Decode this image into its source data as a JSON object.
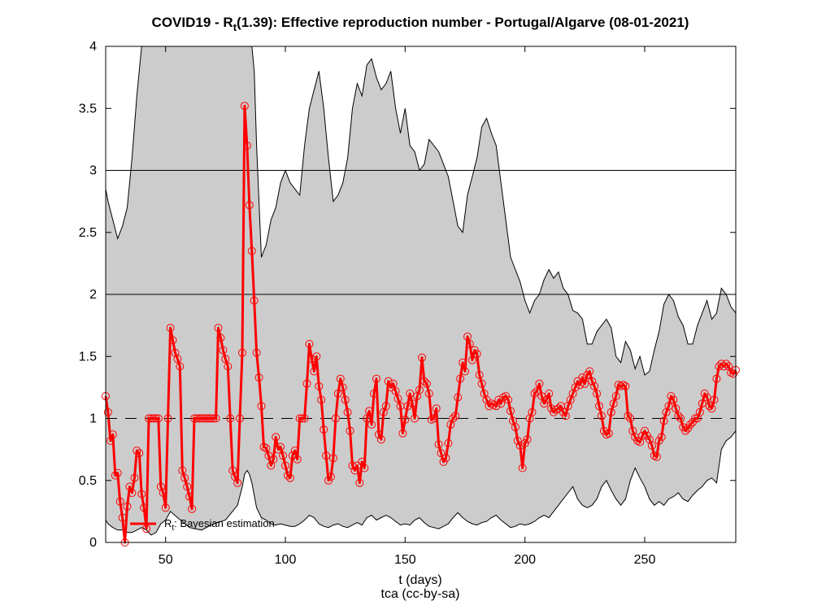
{
  "chart_data": {
    "type": "line",
    "title": {
      "prefix": "COVID19 - R",
      "sub": "t",
      "suffix": "(1.39): Effective reproduction number - Portugal/Algarve (08-01-2021)"
    },
    "xlabel": "t (days)",
    "caption": "tca (cc-by-sa)",
    "xlim": [
      25,
      288
    ],
    "ylim": [
      0,
      4
    ],
    "x_ticks": [
      50,
      100,
      150,
      200,
      250
    ],
    "y_ticks": [
      0,
      0.5,
      1,
      1.5,
      2,
      2.5,
      3,
      3.5,
      4
    ],
    "y_tick_labels": [
      "0",
      "0.5",
      "1",
      "1.5",
      "2",
      "2.5",
      "3",
      "3.5",
      "4"
    ],
    "hlines": [
      2,
      3
    ],
    "reference_line": 1,
    "legend": {
      "position": "bottom-left",
      "prefix": "R",
      "sub": "t",
      "suffix": ": Bayesian estimation"
    },
    "colors": {
      "estimate": "#ff0000",
      "band": "#cccccc",
      "band_edge": "#000000"
    },
    "series": [
      {
        "name": "Rt: Bayesian estimation",
        "x": [
          25,
          26,
          27,
          28,
          29,
          30,
          31,
          32,
          33,
          34,
          35,
          36,
          37,
          38,
          39,
          40,
          41,
          42,
          43,
          44,
          45,
          46,
          47,
          48,
          49,
          50,
          51,
          52,
          53,
          54,
          55,
          56,
          57,
          58,
          59,
          60,
          61,
          62,
          63,
          64,
          65,
          66,
          67,
          68,
          69,
          70,
          71,
          72,
          73,
          74,
          75,
          76,
          77,
          78,
          79,
          80,
          81,
          82,
          83,
          84,
          85,
          86,
          87,
          88,
          89,
          90,
          91,
          92,
          93,
          94,
          95,
          96,
          97,
          98,
          99,
          100,
          101,
          102,
          103,
          104,
          105,
          106,
          107,
          108,
          109,
          110,
          111,
          112,
          113,
          114,
          115,
          116,
          117,
          118,
          119,
          120,
          121,
          122,
          123,
          124,
          125,
          126,
          127,
          128,
          129,
          130,
          131,
          132,
          133,
          134,
          135,
          136,
          137,
          138,
          139,
          140,
          141,
          142,
          143,
          144,
          145,
          146,
          147,
          148,
          149,
          150,
          151,
          152,
          153,
          154,
          155,
          156,
          157,
          158,
          159,
          160,
          161,
          162,
          163,
          164,
          165,
          166,
          167,
          168,
          169,
          170,
          171,
          172,
          173,
          174,
          175,
          176,
          177,
          178,
          179,
          180,
          181,
          182,
          183,
          184,
          185,
          186,
          187,
          188,
          189,
          190,
          191,
          192,
          193,
          194,
          195,
          196,
          197,
          198,
          199,
          200,
          201,
          202,
          203,
          204,
          205,
          206,
          207,
          208,
          209,
          210,
          211,
          212,
          213,
          214,
          215,
          216,
          217,
          218,
          219,
          220,
          221,
          222,
          223,
          224,
          225,
          226,
          227,
          228,
          229,
          230,
          231,
          232,
          233,
          234,
          235,
          236,
          237,
          238,
          239,
          240,
          241,
          242,
          243,
          244,
          245,
          246,
          247,
          248,
          249,
          250,
          251,
          252,
          253,
          254,
          255,
          256,
          257,
          258,
          259,
          260,
          261,
          262,
          263,
          264,
          265,
          266,
          267,
          268,
          269,
          270,
          271,
          272,
          273,
          274,
          275,
          276,
          277,
          278,
          279,
          280,
          281,
          282,
          283,
          284,
          285,
          286,
          287,
          288
        ],
        "y": [
          1.18,
          1.05,
          0.82,
          0.87,
          0.54,
          0.56,
          0.33,
          0.2,
          0.0,
          0.29,
          0.45,
          0.4,
          0.52,
          0.74,
          0.72,
          0.39,
          0.28,
          0.11,
          1.0,
          1.0,
          1.0,
          1.0,
          1.0,
          0.45,
          0.4,
          0.28,
          1.0,
          1.73,
          1.63,
          1.53,
          1.48,
          1.42,
          0.58,
          0.52,
          0.45,
          0.37,
          0.27,
          1.0,
          1.0,
          1.0,
          1.0,
          1.0,
          1.0,
          1.0,
          1.0,
          1.0,
          1.0,
          1.73,
          1.65,
          1.55,
          1.48,
          1.42,
          1.0,
          0.58,
          0.53,
          0.48,
          1.0,
          1.53,
          3.52,
          3.2,
          2.72,
          2.35,
          1.95,
          1.53,
          1.33,
          1.1,
          0.77,
          0.76,
          0.7,
          0.62,
          0.67,
          0.85,
          0.75,
          0.77,
          0.7,
          0.62,
          0.54,
          0.52,
          0.7,
          0.74,
          0.67,
          1.0,
          1.0,
          1.0,
          1.28,
          1.6,
          1.48,
          1.38,
          1.5,
          1.26,
          1.15,
          0.91,
          0.7,
          0.5,
          0.53,
          0.68,
          1.0,
          1.2,
          1.32,
          1.25,
          1.15,
          1.05,
          0.9,
          0.62,
          0.58,
          0.62,
          0.48,
          0.65,
          0.6,
          1.0,
          1.06,
          0.95,
          1.2,
          1.32,
          0.87,
          0.83,
          1.05,
          1.1,
          1.3,
          1.25,
          1.28,
          1.22,
          1.16,
          1.1,
          0.88,
          0.99,
          1.1,
          1.2,
          1.12,
          1.0,
          1.18,
          1.23,
          1.49,
          1.3,
          1.28,
          1.2,
          0.99,
          1.0,
          1.08,
          0.79,
          0.72,
          0.65,
          0.68,
          0.8,
          0.95,
          1.0,
          1.02,
          1.17,
          1.32,
          1.45,
          1.38,
          1.66,
          1.6,
          1.47,
          1.55,
          1.52,
          1.35,
          1.28,
          1.2,
          1.15,
          1.1,
          1.12,
          1.11,
          1.1,
          1.15,
          1.12,
          1.17,
          1.18,
          1.15,
          1.06,
          0.98,
          0.93,
          0.82,
          0.78,
          0.6,
          0.8,
          0.83,
          1.0,
          1.05,
          1.2,
          1.22,
          1.28,
          1.18,
          1.12,
          1.15,
          1.2,
          1.08,
          1.05,
          1.07,
          1.08,
          1.1,
          1.05,
          1.02,
          1.1,
          1.15,
          1.2,
          1.25,
          1.3,
          1.27,
          1.33,
          1.28,
          1.35,
          1.38,
          1.3,
          1.26,
          1.2,
          1.1,
          1.02,
          0.9,
          0.87,
          0.88,
          1.05,
          1.12,
          1.18,
          1.27,
          1.26,
          1.27,
          1.26,
          1.02,
          1.0,
          0.9,
          0.85,
          0.82,
          0.81,
          0.86,
          0.9,
          0.86,
          0.83,
          0.78,
          0.7,
          0.69,
          0.82,
          0.85,
          0.98,
          1.05,
          1.1,
          1.18,
          1.15,
          1.08,
          1.02,
          1.0,
          0.93,
          0.9,
          0.92,
          0.95,
          0.97,
          1.0,
          1.0,
          1.05,
          1.12,
          1.2,
          1.17,
          1.1,
          1.08,
          1.15,
          1.32,
          1.42,
          1.44,
          1.42,
          1.44,
          1.42,
          1.37,
          1.36,
          1.39
        ]
      }
    ],
    "band": {
      "name": "credible interval",
      "x": [
        25,
        26,
        28,
        30,
        32,
        34,
        36,
        38,
        40,
        42,
        44,
        46,
        48,
        50,
        52,
        55,
        60,
        65,
        70,
        75,
        80,
        82,
        83,
        84,
        85,
        86,
        87,
        88,
        90,
        92,
        94,
        96,
        98,
        100,
        102,
        104,
        106,
        108,
        110,
        112,
        114,
        116,
        118,
        120,
        122,
        124,
        126,
        128,
        130,
        132,
        134,
        136,
        138,
        140,
        142,
        144,
        146,
        148,
        150,
        152,
        154,
        156,
        158,
        160,
        162,
        164,
        166,
        168,
        170,
        172,
        174,
        176,
        178,
        180,
        182,
        184,
        186,
        188,
        190,
        192,
        194,
        196,
        198,
        200,
        202,
        204,
        206,
        208,
        210,
        212,
        214,
        216,
        218,
        220,
        222,
        224,
        226,
        228,
        230,
        232,
        234,
        236,
        238,
        240,
        242,
        244,
        246,
        248,
        250,
        252,
        254,
        256,
        258,
        260,
        262,
        264,
        266,
        268,
        270,
        272,
        274,
        276,
        278,
        280,
        282,
        284,
        286,
        288
      ],
      "upper": [
        2.85,
        2.75,
        2.6,
        2.45,
        2.55,
        2.7,
        3.1,
        3.6,
        4.0,
        4.0,
        4.0,
        4.0,
        4.0,
        4.0,
        4.0,
        4.0,
        4.0,
        4.0,
        4.0,
        4.0,
        4.0,
        4.0,
        4.0,
        4.0,
        4.0,
        4.0,
        3.8,
        3.2,
        2.3,
        2.4,
        2.6,
        2.7,
        2.9,
        3.0,
        2.9,
        2.85,
        2.8,
        3.2,
        3.5,
        3.65,
        3.8,
        3.5,
        3.1,
        2.75,
        2.8,
        2.9,
        3.1,
        3.5,
        3.7,
        3.6,
        3.85,
        3.9,
        3.75,
        3.65,
        3.7,
        3.8,
        3.5,
        3.3,
        3.5,
        3.2,
        3.15,
        3.0,
        3.05,
        3.25,
        3.2,
        3.15,
        3.05,
        2.95,
        2.75,
        2.55,
        2.5,
        2.8,
        2.95,
        3.1,
        3.35,
        3.42,
        3.3,
        3.2,
        2.9,
        2.6,
        2.3,
        2.2,
        2.1,
        1.95,
        1.85,
        1.95,
        2.0,
        2.12,
        2.2,
        2.13,
        2.18,
        2.05,
        2.0,
        1.87,
        1.85,
        1.8,
        1.6,
        1.6,
        1.7,
        1.75,
        1.8,
        1.73,
        1.5,
        1.45,
        1.62,
        1.55,
        1.4,
        1.5,
        1.35,
        1.38,
        1.55,
        1.7,
        1.92,
        2.0,
        1.95,
        1.82,
        1.75,
        1.6,
        1.6,
        1.75,
        1.85,
        1.95,
        1.8,
        1.85,
        2.05,
        2.0,
        1.9,
        1.85
      ],
      "lower": [
        0.18,
        0.15,
        0.12,
        0.1,
        0.1,
        0.08,
        0.08,
        0.1,
        0.12,
        0.1,
        0.06,
        0.08,
        0.15,
        0.18,
        0.25,
        0.2,
        0.12,
        0.1,
        0.15,
        0.18,
        0.3,
        0.45,
        0.55,
        0.58,
        0.55,
        0.48,
        0.38,
        0.28,
        0.2,
        0.18,
        0.15,
        0.14,
        0.15,
        0.14,
        0.13,
        0.13,
        0.15,
        0.18,
        0.22,
        0.2,
        0.15,
        0.13,
        0.12,
        0.14,
        0.15,
        0.13,
        0.12,
        0.14,
        0.16,
        0.14,
        0.2,
        0.22,
        0.18,
        0.2,
        0.22,
        0.2,
        0.17,
        0.14,
        0.15,
        0.14,
        0.18,
        0.2,
        0.16,
        0.13,
        0.12,
        0.11,
        0.13,
        0.15,
        0.2,
        0.24,
        0.2,
        0.17,
        0.15,
        0.14,
        0.16,
        0.17,
        0.2,
        0.22,
        0.18,
        0.15,
        0.12,
        0.13,
        0.15,
        0.14,
        0.15,
        0.17,
        0.2,
        0.22,
        0.2,
        0.25,
        0.3,
        0.35,
        0.4,
        0.45,
        0.35,
        0.3,
        0.28,
        0.3,
        0.35,
        0.45,
        0.5,
        0.42,
        0.35,
        0.3,
        0.35,
        0.5,
        0.6,
        0.52,
        0.45,
        0.35,
        0.3,
        0.33,
        0.3,
        0.35,
        0.37,
        0.4,
        0.35,
        0.33,
        0.38,
        0.42,
        0.45,
        0.5,
        0.52,
        0.48,
        0.75,
        0.82,
        0.85,
        0.9
      ]
    }
  }
}
